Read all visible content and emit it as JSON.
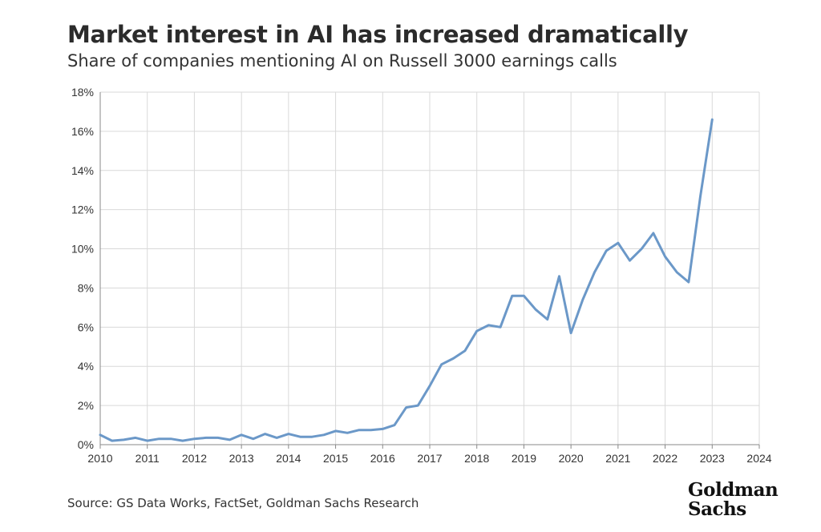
{
  "header": {
    "title": "Market interest in AI has increased dramatically",
    "subtitle": "Share of companies mentioning AI on Russell 3000 earnings calls"
  },
  "footer": {
    "source": "Source: GS Data Works, FactSet, Goldman Sachs Research",
    "logo_line1": "Goldman",
    "logo_line2": "Sachs"
  },
  "chart_data": {
    "type": "line",
    "title": "Market interest in AI has increased dramatically",
    "subtitle": "Share of companies mentioning AI on Russell 3000 earnings calls",
    "xlabel": "",
    "ylabel": "",
    "xlim": [
      2010,
      2024
    ],
    "ylim": [
      0,
      18
    ],
    "x_ticks": [
      "2010",
      "2011",
      "2012",
      "2013",
      "2014",
      "2015",
      "2016",
      "2017",
      "2018",
      "2019",
      "2020",
      "2021",
      "2022",
      "2023",
      "2024"
    ],
    "y_ticks": [
      "0%",
      "2%",
      "4%",
      "6%",
      "8%",
      "10%",
      "12%",
      "14%",
      "16%",
      "18%"
    ],
    "y_unit": "%",
    "grid": true,
    "line_color": "#6b98c8",
    "series": [
      {
        "x": [
          2010.0,
          2010.25,
          2010.5,
          2010.75,
          2011.0,
          2011.25,
          2011.5,
          2011.75,
          2012.0,
          2012.25,
          2012.5,
          2012.75,
          2013.0,
          2013.25,
          2013.5,
          2013.75,
          2014.0,
          2014.25,
          2014.5,
          2014.75,
          2015.0,
          2015.25,
          2015.5,
          2015.75,
          2016.0,
          2016.25,
          2016.5,
          2016.75,
          2017.0,
          2017.25,
          2017.5,
          2017.75,
          2018.0,
          2018.25,
          2018.5,
          2018.75,
          2019.0,
          2019.25,
          2019.5,
          2019.75,
          2020.0,
          2020.25,
          2020.5,
          2020.75,
          2021.0,
          2021.25,
          2021.5,
          2021.75,
          2022.0,
          2022.25,
          2022.5,
          2022.75,
          2023.0
        ],
        "values": [
          0.5,
          0.2,
          0.25,
          0.35,
          0.2,
          0.3,
          0.3,
          0.2,
          0.3,
          0.35,
          0.35,
          0.25,
          0.5,
          0.3,
          0.55,
          0.35,
          0.55,
          0.4,
          0.4,
          0.5,
          0.7,
          0.6,
          0.75,
          0.75,
          0.8,
          1.0,
          1.9,
          2.0,
          3.0,
          4.1,
          4.4,
          4.8,
          5.8,
          6.1,
          6.0,
          7.6,
          7.6,
          6.9,
          6.4,
          8.6,
          5.7,
          7.4,
          8.8,
          9.9,
          10.3,
          9.4,
          10.0,
          10.8,
          9.6,
          8.8,
          8.3,
          12.7,
          16.6
        ]
      }
    ]
  }
}
